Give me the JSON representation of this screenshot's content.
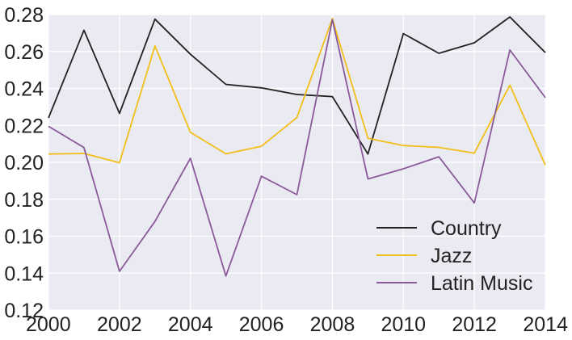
{
  "chart_data": {
    "type": "line",
    "title": "",
    "xlabel": "",
    "ylabel": "",
    "x": [
      2000,
      2001,
      2002,
      2003,
      2004,
      2005,
      2006,
      2007,
      2008,
      2009,
      2010,
      2011,
      2012,
      2013,
      2014
    ],
    "xlim": [
      2000,
      2014
    ],
    "ylim": [
      0.12,
      0.28
    ],
    "xticks": [
      "2000",
      "2002",
      "2004",
      "2006",
      "2008",
      "2010",
      "2012",
      "2014"
    ],
    "yticks": [
      "0.12",
      "0.14",
      "0.16",
      "0.18",
      "0.20",
      "0.22",
      "0.24",
      "0.26",
      "0.28"
    ],
    "grid": true,
    "legend_position": "bottom-right",
    "background_color": "#eaeaf2",
    "grid_color": "#ffffff",
    "series": [
      {
        "name": "Country",
        "color": "#222222",
        "values": [
          0.224,
          0.2715,
          0.2265,
          0.2775,
          0.2585,
          0.2422,
          0.2403,
          0.2367,
          0.2356,
          0.2045,
          0.2697,
          0.259,
          0.2647,
          0.2787,
          0.2594
        ]
      },
      {
        "name": "Jazz",
        "color": "#f2bf1a",
        "values": [
          0.2045,
          0.2048,
          0.1998,
          0.263,
          0.2162,
          0.2046,
          0.2087,
          0.2242,
          0.2778,
          0.213,
          0.2091,
          0.2081,
          0.205,
          0.2418,
          0.1985
        ]
      },
      {
        "name": "Latin Music",
        "color": "#8a5a9a",
        "values": [
          0.2195,
          0.208,
          0.141,
          0.168,
          0.2022,
          0.1385,
          0.1925,
          0.1825,
          0.2772,
          0.191,
          0.1965,
          0.203,
          0.178,
          0.2608,
          0.235
        ]
      }
    ]
  }
}
